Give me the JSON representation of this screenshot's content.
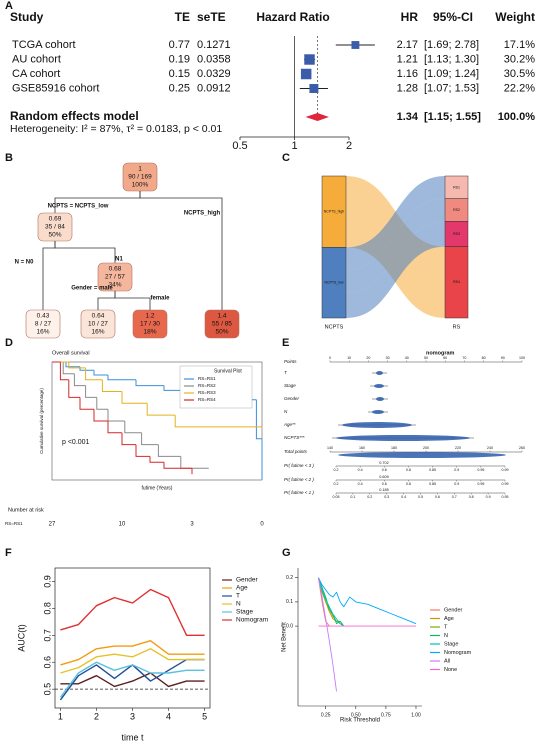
{
  "panel_labels": [
    "A",
    "B",
    "C",
    "D",
    "E",
    "F",
    "G"
  ],
  "chart_data": [
    {
      "type": "forest",
      "columns": [
        "Study",
        "TE",
        "seTE",
        "Hazard Ratio",
        "HR",
        "95%-CI",
        "Weight"
      ],
      "rows": [
        {
          "study": "TCGA cohort",
          "te": 0.77,
          "sete": 0.1271,
          "hr": 2.17,
          "ci_low": 1.69,
          "ci_high": 2.78,
          "ci_label": "[1.69; 2.78]",
          "weight": 17.1,
          "weight_label": "17.1%"
        },
        {
          "study": "AU cohort",
          "te": 0.19,
          "sete": 0.0358,
          "hr": 1.21,
          "ci_low": 1.13,
          "ci_high": 1.3,
          "ci_label": "[1.13; 1.30]",
          "weight": 30.2,
          "weight_label": "30.2%"
        },
        {
          "study": "CA cohort",
          "te": 0.15,
          "sete": 0.0329,
          "hr": 1.16,
          "ci_low": 1.09,
          "ci_high": 1.24,
          "ci_label": "[1.09; 1.24]",
          "weight": 30.5,
          "weight_label": "30.5%"
        },
        {
          "study": "GSE85916 cohort",
          "te": 0.25,
          "sete": 0.0912,
          "hr": 1.28,
          "ci_low": 1.07,
          "ci_high": 1.53,
          "ci_label": "[1.07; 1.53]",
          "weight": 22.2,
          "weight_label": "22.2%"
        }
      ],
      "summary": {
        "label": "Random effects model",
        "hr": 1.34,
        "ci_low": 1.15,
        "ci_high": 1.55,
        "ci_label": "[1.15; 1.55]",
        "weight": 100,
        "weight_label": "100.0%"
      },
      "heterogeneity": "Heterogeneity: I² = 87%, τ² = 0.0183, p < 0.01",
      "xlim": [
        0.5,
        2
      ],
      "xticks": [
        0.5,
        1,
        2
      ],
      "log_x": true,
      "reference_line": 1,
      "square_color": "#3b5ca8",
      "diamond_color": "#e0263a"
    },
    {
      "type": "tree",
      "root": {
        "lines": [
          "1",
          "90 / 169",
          "100%"
        ],
        "color": "#f2a98a",
        "children": [
          {
            "edge": "NCPTS = NCPTS_low",
            "lines": [
              "0.69",
              "35 / 84",
              "50%"
            ],
            "color": "#f9dccb",
            "children": [
              {
                "edge": "N = N0",
                "lines": [
                  "0.43",
                  "8 / 27",
                  "16%"
                ],
                "color": "#fdf1ea"
              },
              {
                "edge": "N1",
                "lines": [
                  "0.68",
                  "27 / 57",
                  "34%"
                ],
                "color": "#f4b79e",
                "children": [
                  {
                    "edge": "Gender = male",
                    "lines": [
                      "0.64",
                      "10 / 27",
                      "16%"
                    ],
                    "color": "#fbe4d8"
                  },
                  {
                    "edge": "female",
                    "lines": [
                      "1.2",
                      "17 / 30",
                      "18%"
                    ],
                    "color": "#e8684e"
                  }
                ]
              }
            ]
          },
          {
            "edge": "NCPTS_high",
            "lines": [
              "1.4",
              "55 / 85",
              "50%"
            ],
            "color": "#dd5840"
          }
        ]
      }
    },
    {
      "type": "sankey",
      "axis_labels": [
        "NCPTS",
        "RS"
      ],
      "left": [
        {
          "name": "NCPTS_high",
          "value": 85,
          "color": "#f5ac3a"
        },
        {
          "name": "NCPTS_low",
          "value": 84,
          "color": "#4f7fbf"
        }
      ],
      "right": [
        {
          "name": "RS1",
          "value": 27,
          "color": "#f5b9b0"
        },
        {
          "name": "RS2",
          "value": 27,
          "color": "#f08a80"
        },
        {
          "name": "RS3",
          "value": 30,
          "color": "#e2386c"
        },
        {
          "name": "RS4",
          "value": 85,
          "color": "#e8444a"
        }
      ],
      "flows": [
        [
          0,
          0,
          0,
          85
        ],
        [
          27,
          27,
          30,
          0
        ]
      ]
    },
    {
      "type": "km",
      "title": "Overall survival",
      "xlabel": "futime (Years)",
      "ylabel": "Cumulative survival (percentage)",
      "legend_title": "Survival Plot",
      "pvalue": "p <0.001",
      "xlim": [
        0,
        7.5
      ],
      "ylim": [
        0,
        1
      ],
      "series": [
        {
          "name": "RS=RS1",
          "color": "#3b8fd9",
          "x": [
            0,
            0.5,
            1,
            1.5,
            2,
            3,
            4,
            4.8,
            7.3,
            7.5
          ],
          "values": [
            1,
            0.96,
            0.93,
            0.89,
            0.85,
            0.8,
            0.76,
            0.68,
            0.35,
            0
          ]
        },
        {
          "name": "RS=RS2",
          "color": "#8a8a8a",
          "x": [
            0,
            0.4,
            0.8,
            1.2,
            1.6,
            2,
            2.6,
            3.2,
            3.8,
            4.6,
            5.6
          ],
          "values": [
            1,
            0.9,
            0.8,
            0.7,
            0.6,
            0.5,
            0.4,
            0.3,
            0.2,
            0.1,
            0.1
          ]
        },
        {
          "name": "RS=RS3",
          "color": "#e3b21e",
          "x": [
            0,
            0.6,
            1.2,
            1.8,
            2.5,
            3.4,
            4.4,
            7.5
          ],
          "values": [
            1,
            0.95,
            0.85,
            0.75,
            0.65,
            0.55,
            0.45,
            0.45
          ]
        },
        {
          "name": "RS=RS4",
          "color": "#d62728",
          "x": [
            0,
            0.3,
            0.6,
            1,
            1.5,
            2,
            2.5,
            3,
            3.5,
            4,
            5
          ],
          "values": [
            1,
            0.85,
            0.7,
            0.6,
            0.5,
            0.4,
            0.3,
            0.2,
            0.15,
            0.1,
            0.05
          ]
        }
      ],
      "risk_title": "Number at risk",
      "risk_row": {
        "name": "RS=RS1",
        "times": [
          0,
          2.5,
          5,
          7.5
        ],
        "values": [
          27,
          10,
          3,
          0
        ]
      }
    },
    {
      "type": "nomogram",
      "title": "nomogram",
      "rows": [
        {
          "name": "Points",
          "xlim": [
            0,
            100
          ],
          "ticks": [
            0,
            10,
            20,
            30,
            40,
            50,
            60,
            70,
            80,
            90,
            100
          ]
        },
        {
          "name": "T"
        },
        {
          "name": "Stage"
        },
        {
          "name": "Gender"
        },
        {
          "name": "N"
        },
        {
          "name": "Age**"
        },
        {
          "name": "NCPTS***"
        },
        {
          "name": "Total points",
          "xlim": [
            140,
            260
          ],
          "ticks": [
            140,
            160,
            180,
            200,
            220,
            240,
            260
          ]
        },
        {
          "name": "Pr( futime < 3 )",
          "tick_labels": [
            "0.2",
            "0.4",
            "0.6",
            "0.8",
            "0.85",
            "0.9",
            "0.95",
            "0.99"
          ],
          "value_label": "0.702"
        },
        {
          "name": "Pr( futime < 2 )",
          "tick_labels": [
            "0.2",
            "0.4",
            "0.6",
            "0.8",
            "0.85",
            "0.9",
            "0.95",
            "0.99"
          ],
          "value_label": "0.609"
        },
        {
          "name": "Pr( futime < 1 )",
          "tick_labels": [
            "0.05",
            "0.1",
            "0.2",
            "0.3",
            "0.4",
            "0.5",
            "0.6",
            "0.7",
            "0.8",
            "0.9",
            "0.95"
          ],
          "value_label": "0.185"
        }
      ]
    },
    {
      "type": "line",
      "xlabel": "time t",
      "ylabel": "AUC(t)",
      "frame": true,
      "x": [
        1,
        1.5,
        2,
        2.5,
        3,
        3.5,
        4,
        4.5,
        5
      ],
      "xlim": [
        0.85,
        5.15
      ],
      "xticks": [
        1,
        2,
        3,
        4,
        5
      ],
      "ylim": [
        0.43,
        0.95
      ],
      "yticks": [
        0.5,
        0.6,
        0.7,
        0.8,
        0.9
      ],
      "reference_line": 0.5,
      "series": [
        {
          "name": "Gender",
          "color": "#5a2020",
          "values": [
            0.52,
            0.52,
            0.55,
            0.51,
            0.53,
            0.56,
            0.51,
            0.53,
            0.53
          ]
        },
        {
          "name": "Age",
          "color": "#f39c12",
          "values": [
            0.59,
            0.61,
            0.65,
            0.66,
            0.66,
            0.68,
            0.63,
            0.63,
            0.63
          ]
        },
        {
          "name": "T",
          "color": "#1f4e9c",
          "values": [
            0.46,
            0.55,
            0.59,
            0.54,
            0.59,
            0.53,
            0.57,
            0.61,
            0.61
          ]
        },
        {
          "name": "N",
          "color": "#e6c229",
          "values": [
            0.56,
            0.58,
            0.62,
            0.63,
            0.62,
            0.65,
            0.61,
            0.61,
            0.61
          ]
        },
        {
          "name": "Stage",
          "color": "#5bc0de",
          "values": [
            0.47,
            0.56,
            0.6,
            0.57,
            0.59,
            0.56,
            0.56,
            0.57,
            0.57
          ]
        },
        {
          "name": "Nomogram",
          "color": "#e03030",
          "values": [
            0.72,
            0.74,
            0.81,
            0.84,
            0.82,
            0.87,
            0.84,
            0.7,
            0.7
          ]
        }
      ]
    },
    {
      "type": "line",
      "xlabel": "Risk Threshold",
      "ylabel": "Net Benefit",
      "x": [
        0.19,
        0.22,
        0.25,
        0.28,
        0.31,
        0.34,
        0.37,
        0.4,
        0.45,
        0.5,
        0.6,
        0.7,
        0.8,
        0.9,
        1
      ],
      "xlim": [
        0.02,
        1.05
      ],
      "xticks": [
        0.25,
        {
          "value": 0.5,
          "label": "0.50"
        },
        0.75,
        {
          "value": 1,
          "label": "1.00"
        }
      ],
      "ylim": [
        -0.33,
        0.24
      ],
      "yticks": [
        {
          "value": 0,
          "label": "0.0"
        },
        0.1,
        0.2
      ],
      "series": [
        {
          "name": "Gender",
          "color": "#f8766d",
          "values": [
            0.2,
            0.1,
            0.02,
            0,
            null,
            null,
            null,
            null,
            null,
            null,
            null,
            null,
            null,
            null,
            null
          ]
        },
        {
          "name": "Age",
          "color": "#cd9600",
          "values": [
            0.2,
            0.15,
            0.1,
            0.06,
            0.03,
            0.02,
            0.01,
            0,
            null,
            null,
            null,
            null,
            null,
            null,
            null
          ]
        },
        {
          "name": "T",
          "color": "#7cae00",
          "values": [
            0.2,
            0.14,
            0.1,
            0.07,
            0.04,
            0.02,
            0.02,
            0,
            null,
            null,
            null,
            null,
            null,
            null,
            null
          ]
        },
        {
          "name": "N",
          "color": "#00be67",
          "values": [
            0.2,
            0.16,
            0.12,
            0.07,
            0.05,
            0.01,
            0.02,
            0,
            null,
            null,
            null,
            null,
            null,
            null,
            null
          ]
        },
        {
          "name": "Stage",
          "color": "#00bfc4",
          "values": [
            0.2,
            0.15,
            0.11,
            0.08,
            0.05,
            0.03,
            0.01,
            0,
            null,
            null,
            null,
            null,
            null,
            null,
            null
          ]
        },
        {
          "name": "Nomogram",
          "color": "#00a9ff",
          "values": [
            0.2,
            0.17,
            0.15,
            0.13,
            0.12,
            0.14,
            0.1,
            0.08,
            0.12,
            0.1,
            0.09,
            0.07,
            0.05,
            0.03,
            0.01
          ]
        },
        {
          "name": "All",
          "color": "#c77cff",
          "values": [
            0.2,
            0.12,
            0.03,
            -0.06,
            -0.16,
            -0.27,
            null,
            null,
            null,
            null,
            null,
            null,
            null,
            null,
            null
          ]
        },
        {
          "name": "None",
          "color": "#ff61cc",
          "values": [
            0,
            0,
            0,
            0,
            0,
            0,
            0,
            0,
            0,
            0,
            0,
            0,
            0,
            0,
            0
          ]
        }
      ]
    }
  ]
}
